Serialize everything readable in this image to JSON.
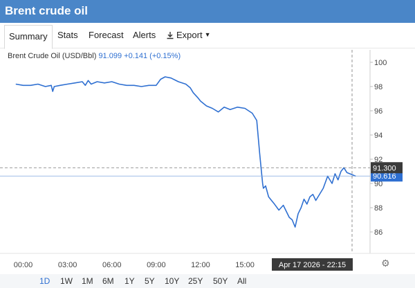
{
  "header": {
    "title": "Brent crude oil"
  },
  "tabs": [
    {
      "label": "Summary",
      "active": true
    },
    {
      "label": "Stats"
    },
    {
      "label": "Forecast"
    },
    {
      "label": "Alerts"
    },
    {
      "label": "Export"
    }
  ],
  "subtitle": {
    "name": "Brent Crude Oil (USD/Bbl)",
    "price": "91.099",
    "change": "+0.141",
    "change_pct": "(+0.15%)"
  },
  "ranges": [
    "1D",
    "1W",
    "1M",
    "6M",
    "1Y",
    "5Y",
    "10Y",
    "25Y",
    "50Y",
    "All"
  ],
  "active_range": "1D",
  "chart_data": {
    "type": "line",
    "x_tick_labels": [
      "00:00",
      "03:00",
      "06:00",
      "09:00",
      "12:00",
      "15:00"
    ],
    "x_tick_hours": [
      0,
      3,
      6,
      9,
      12,
      15
    ],
    "y_tick_labels": [
      "86",
      "88",
      "90",
      "92",
      "94",
      "96",
      "98",
      "100"
    ],
    "y_ticks": [
      86,
      88,
      90,
      92,
      94,
      96,
      98,
      100
    ],
    "ylim": [
      84.8,
      101
    ],
    "xlim_hours": [
      -0.6,
      22.35
    ],
    "cursor_label": "Apr 17 2026 - 22:15",
    "crosshair_price": "91.300",
    "current_price": "90.616",
    "crosshair_value": 91.3,
    "current_value": 90.616,
    "cursor_hour": 22.25,
    "series": [
      {
        "x": [
          -0.5,
          0,
          0.5,
          1,
          1.5,
          1.9,
          2,
          2.1,
          2.5,
          3,
          3.5,
          4,
          4.2,
          4.4,
          4.6,
          5,
          5.5,
          6,
          6.5,
          7,
          7.5,
          8,
          8.5,
          9,
          9.3,
          9.6,
          10,
          10.5,
          11,
          11.3,
          11.5,
          11.8,
          12,
          12.4,
          12.8,
          13.2,
          13.6,
          14,
          14.5,
          15,
          15.5,
          15.8,
          16,
          16.1,
          16.2,
          16.25,
          16.4,
          16.6,
          16.8,
          17,
          17.3,
          17.6,
          18,
          18.2,
          18.4,
          18.6,
          18.8,
          19,
          19.2,
          19.4,
          19.6,
          19.8,
          20,
          20.3,
          20.6,
          20.9,
          21.1,
          21.3,
          21.5,
          21.7,
          21.9,
          22.1,
          22.3,
          22.5
        ],
        "y": [
          98.2,
          98.1,
          98.1,
          98.2,
          98.0,
          98.1,
          97.6,
          98.0,
          98.1,
          98.2,
          98.3,
          98.4,
          98.1,
          98.5,
          98.2,
          98.4,
          98.3,
          98.4,
          98.2,
          98.1,
          98.1,
          98.0,
          98.1,
          98.1,
          98.6,
          98.8,
          98.7,
          98.4,
          98.2,
          97.9,
          97.5,
          97.1,
          96.8,
          96.4,
          96.2,
          95.9,
          96.3,
          96.1,
          96.3,
          96.2,
          95.8,
          95.2,
          92.5,
          91.2,
          90.0,
          89.6,
          89.8,
          88.9,
          88.6,
          88.3,
          87.8,
          88.2,
          87.2,
          87.0,
          86.4,
          87.5,
          88.0,
          88.7,
          88.3,
          88.9,
          89.1,
          88.6,
          89.0,
          89.6,
          90.6,
          90.0,
          90.8,
          90.3,
          91.0,
          91.3,
          90.9,
          90.8,
          90.7,
          90.6
        ]
      }
    ]
  },
  "colors": {
    "header_bg": "#4a86c8",
    "line": "#2e6fd1",
    "accent": "#2e6fd1",
    "cursor_box": "#3a3a3a"
  }
}
